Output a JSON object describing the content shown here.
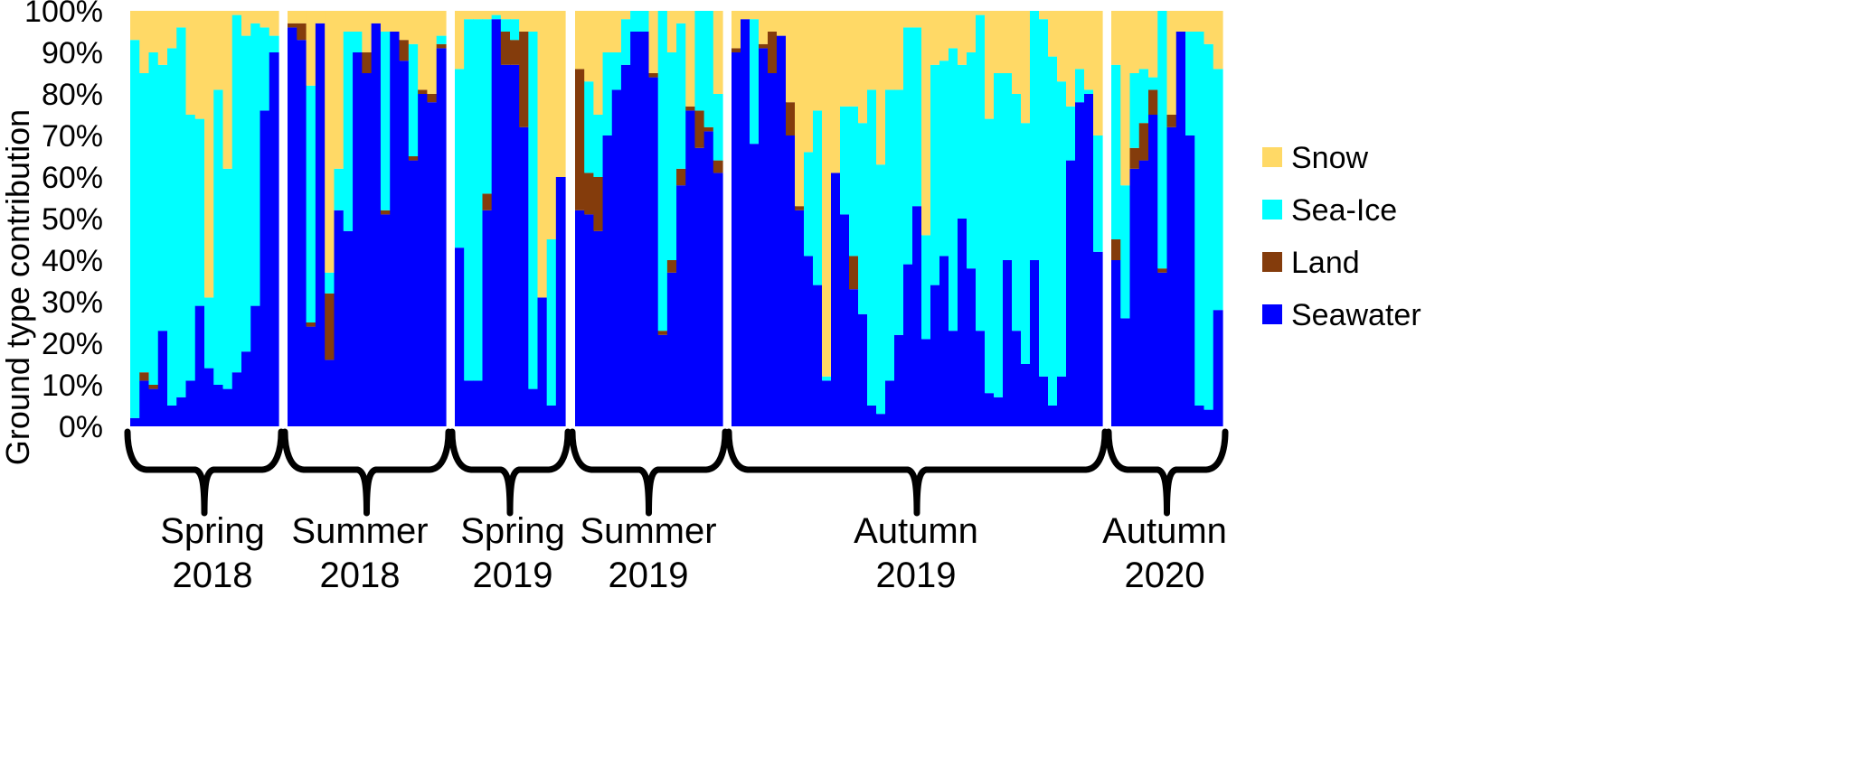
{
  "chart_data": {
    "type": "bar",
    "stacked": true,
    "ylabel": "Ground type contribution",
    "y_ticks": [
      "0%",
      "10%",
      "20%",
      "30%",
      "40%",
      "50%",
      "60%",
      "70%",
      "80%",
      "90%",
      "100%"
    ],
    "ylim": [
      0,
      100
    ],
    "legend_position": "right",
    "series": [
      {
        "name": "Snow",
        "color": "#FFD966"
      },
      {
        "name": "Sea-Ice",
        "color": "#00FFFF"
      },
      {
        "name": "Land",
        "color": "#843C0C"
      },
      {
        "name": "Seawater",
        "color": "#0000FF"
      }
    ],
    "groups": [
      {
        "label_line1": "Spring",
        "label_line2": "2018",
        "seawater": [
          2,
          11,
          9,
          23,
          5,
          7,
          11,
          29,
          14,
          10,
          9,
          13,
          18,
          29,
          76,
          90
        ],
        "land": [
          0,
          2,
          1,
          0,
          0,
          0,
          0,
          0,
          0,
          0,
          0,
          0,
          0,
          0,
          0,
          0
        ],
        "seaice": [
          91,
          72,
          80,
          64,
          86,
          89,
          64,
          45,
          17,
          71,
          53,
          86,
          76,
          68,
          20,
          4
        ]
      },
      {
        "label_line1": "Summer",
        "label_line2": "2018",
        "seawater": [
          96,
          93,
          24,
          97,
          16,
          52,
          47,
          90,
          85,
          97,
          51,
          95,
          88,
          64,
          80,
          78,
          91
        ],
        "land": [
          1,
          4,
          1,
          0,
          16,
          0,
          0,
          0,
          5,
          0,
          1,
          0,
          5,
          1,
          1,
          2,
          1
        ],
        "seaice": [
          0,
          0,
          57,
          0,
          5,
          10,
          48,
          5,
          0,
          0,
          43,
          0,
          0,
          27,
          0,
          0,
          2
        ]
      },
      {
        "label_line1": "Spring",
        "label_line2": "2019",
        "seawater": [
          43,
          11,
          11,
          52,
          98,
          87,
          87,
          72,
          9,
          31,
          5,
          60
        ],
        "land": [
          0,
          0,
          0,
          4,
          0,
          8,
          6,
          23,
          0,
          0,
          0,
          0
        ],
        "seaice": [
          43,
          87,
          87,
          42,
          1,
          3,
          5,
          0,
          86,
          0,
          40,
          0
        ]
      },
      {
        "label_line1": "Summer",
        "label_line2": "2019",
        "seawater": [
          52,
          51,
          47,
          70,
          81,
          87,
          95,
          95,
          84,
          22,
          37,
          58,
          76,
          67,
          71,
          61
        ],
        "land": [
          34,
          10,
          13,
          0,
          0,
          0,
          0,
          0,
          1,
          1,
          3,
          4,
          1,
          9,
          1,
          3
        ],
        "seaice": [
          0,
          22,
          15,
          20,
          9,
          11,
          5,
          5,
          0,
          77,
          50,
          35,
          0,
          24,
          28,
          16
        ]
      },
      {
        "label_line1": "Autumn",
        "label_line2": "2019",
        "seawater": [
          90,
          98,
          68,
          91,
          85,
          94,
          70,
          52,
          41,
          34,
          11,
          61,
          51,
          33,
          27,
          5,
          3,
          11,
          22,
          39,
          53,
          21,
          34,
          41,
          23,
          50,
          38,
          23,
          8,
          7,
          40,
          23,
          15,
          40,
          12,
          5,
          12,
          64,
          78,
          80,
          42
        ],
        "land": [
          1,
          0,
          0,
          1,
          10,
          0,
          8,
          1,
          0,
          0,
          0,
          0,
          0,
          8,
          0,
          0,
          0,
          0,
          0,
          0,
          0,
          0,
          0,
          0,
          0,
          0,
          0,
          0,
          0,
          0,
          0,
          0,
          0,
          0,
          0,
          0,
          0,
          0,
          0,
          0,
          0
        ],
        "seaice": [
          0,
          0,
          30,
          0,
          0,
          0,
          0,
          0,
          25,
          42,
          1,
          0,
          26,
          36,
          46,
          76,
          60,
          70,
          59,
          57,
          43,
          25,
          53,
          47,
          68,
          37,
          52,
          76,
          66,
          78,
          45,
          57,
          58,
          60,
          86,
          84,
          71,
          13,
          8,
          1,
          28
        ]
      },
      {
        "label_line1": "Autumn",
        "label_line2": "2020",
        "seawater": [
          40,
          26,
          62,
          64,
          75,
          37,
          72,
          95,
          70,
          5,
          4,
          28
        ],
        "land": [
          5,
          0,
          5,
          9,
          6,
          1,
          3,
          0,
          0,
          0,
          0,
          0
        ],
        "seaice": [
          42,
          32,
          18,
          13,
          3,
          62,
          0,
          0,
          25,
          90,
          88,
          58
        ]
      }
    ]
  }
}
